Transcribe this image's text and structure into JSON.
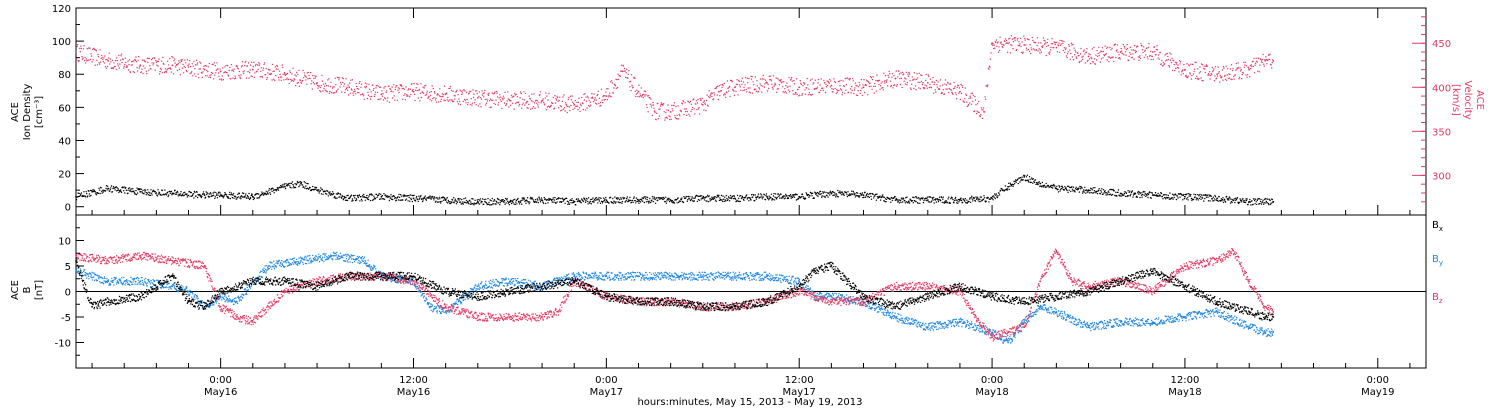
{
  "colors": {
    "black": "#000000",
    "velocity": "#e23b63",
    "by": "#1f86e0",
    "bz": "#e23b63"
  },
  "chart_data": [
    {
      "type": "scatter",
      "panel": "top",
      "ylabel_left": [
        "ACE",
        "Ion Density",
        "[cm⁻³]"
      ],
      "ylabel_right": [
        "ACE",
        "Velocity",
        "[km/s]"
      ],
      "left_axis": {
        "range": [
          -5,
          120
        ],
        "ticks": [
          0,
          20,
          40,
          60,
          80,
          100,
          120
        ]
      },
      "right_axis": {
        "range": [
          255,
          490
        ],
        "ticks": [
          300,
          350,
          400,
          450
        ]
      },
      "x_range_hours": [
        -9,
        75
      ],
      "series": [
        {
          "name": "",
          "axis": "left",
          "color_key": "black",
          "points": [
            [
              -9,
              6
            ],
            [
              -7,
              11
            ],
            [
              -5,
              9
            ],
            [
              -3,
              8
            ],
            [
              -1,
              7
            ],
            [
              0,
              7
            ],
            [
              2,
              6
            ],
            [
              4,
              12
            ],
            [
              5,
              14
            ],
            [
              6,
              10
            ],
            [
              8,
              5
            ],
            [
              10,
              6
            ],
            [
              12,
              5
            ],
            [
              14,
              4
            ],
            [
              16,
              3
            ],
            [
              18,
              3
            ],
            [
              20,
              4
            ],
            [
              22,
              3
            ],
            [
              24,
              4
            ],
            [
              26,
              4
            ],
            [
              28,
              4
            ],
            [
              30,
              5
            ],
            [
              32,
              5
            ],
            [
              34,
              6
            ],
            [
              36,
              6
            ],
            [
              38,
              8
            ],
            [
              40,
              7
            ],
            [
              42,
              4
            ],
            [
              44,
              4
            ],
            [
              46,
              4
            ],
            [
              48,
              5
            ],
            [
              49,
              12
            ],
            [
              50,
              18
            ],
            [
              51,
              14
            ],
            [
              52,
              11
            ],
            [
              54,
              10
            ],
            [
              56,
              8
            ],
            [
              58,
              7
            ],
            [
              60,
              6
            ],
            [
              62,
              5
            ],
            [
              64,
              3
            ],
            [
              65.5,
              3
            ]
          ]
        },
        {
          "name": "",
          "axis": "right",
          "color_key": "velocity",
          "points": [
            [
              -9,
              440
            ],
            [
              -7,
              430
            ],
            [
              -5,
              425
            ],
            [
              -3,
              425
            ],
            [
              -1,
              420
            ],
            [
              0,
              418
            ],
            [
              2,
              420
            ],
            [
              4,
              415
            ],
            [
              6,
              405
            ],
            [
              8,
              400
            ],
            [
              10,
              392
            ],
            [
              12,
              395
            ],
            [
              14,
              392
            ],
            [
              16,
              388
            ],
            [
              18,
              385
            ],
            [
              20,
              385
            ],
            [
              22,
              380
            ],
            [
              24,
              390
            ],
            [
              25,
              418
            ],
            [
              26,
              395
            ],
            [
              27,
              373
            ],
            [
              28,
              372
            ],
            [
              30,
              380
            ],
            [
              31,
              395
            ],
            [
              32,
              400
            ],
            [
              34,
              405
            ],
            [
              36,
              400
            ],
            [
              38,
              402
            ],
            [
              40,
              400
            ],
            [
              42,
              410
            ],
            [
              44,
              405
            ],
            [
              46,
              395
            ],
            [
              47.5,
              372
            ],
            [
              48,
              450
            ],
            [
              50,
              448
            ],
            [
              52,
              445
            ],
            [
              54,
              435
            ],
            [
              56,
              440
            ],
            [
              58,
              440
            ],
            [
              60,
              420
            ],
            [
              62,
              415
            ],
            [
              64,
              420
            ],
            [
              65,
              430
            ],
            [
              65.5,
              430
            ]
          ]
        }
      ]
    },
    {
      "type": "scatter",
      "panel": "bottom",
      "ylabel_left": [
        "ACE",
        "B",
        "[nT]"
      ],
      "left_axis": {
        "range": [
          -15,
          15
        ],
        "ticks": [
          -10,
          -5,
          0,
          5,
          10
        ]
      },
      "x_range_hours": [
        -9,
        75
      ],
      "x_ticks": [
        {
          "hours": 0,
          "line1": "0:00",
          "line2": "May16"
        },
        {
          "hours": 12,
          "line1": "12:00",
          "line2": "May16"
        },
        {
          "hours": 24,
          "line1": "0:00",
          "line2": "May17"
        },
        {
          "hours": 36,
          "line1": "12:00",
          "line2": "May17"
        },
        {
          "hours": 48,
          "line1": "0:00",
          "line2": "May18"
        },
        {
          "hours": 60,
          "line1": "12:00",
          "line2": "May18"
        },
        {
          "hours": 72,
          "line1": "0:00",
          "line2": "May19"
        }
      ],
      "xlabel": "hours:minutes, May 15, 2013 - May 19, 2013",
      "legend": [
        "B",
        "B",
        "B"
      ],
      "legend_subscripts": [
        "x",
        "y",
        "z"
      ],
      "series": [
        {
          "name": "Bx",
          "color_key": "black",
          "points": [
            [
              -9,
              6
            ],
            [
              -8,
              -3
            ],
            [
              -7,
              -2
            ],
            [
              -5,
              -1
            ],
            [
              -3,
              3
            ],
            [
              -2,
              -2
            ],
            [
              -1,
              -3
            ],
            [
              0,
              0
            ],
            [
              2,
              2
            ],
            [
              4,
              2
            ],
            [
              6,
              1
            ],
            [
              8,
              3
            ],
            [
              10,
              3
            ],
            [
              12,
              3
            ],
            [
              14,
              0
            ],
            [
              16,
              -1
            ],
            [
              18,
              0
            ],
            [
              20,
              1
            ],
            [
              22,
              2
            ],
            [
              24,
              -1
            ],
            [
              26,
              -2
            ],
            [
              28,
              -2
            ],
            [
              30,
              -3
            ],
            [
              32,
              -3
            ],
            [
              34,
              -2
            ],
            [
              36,
              1
            ],
            [
              37,
              4
            ],
            [
              38,
              5
            ],
            [
              39,
              2
            ],
            [
              40,
              -1
            ],
            [
              42,
              -3
            ],
            [
              44,
              -1
            ],
            [
              46,
              1
            ],
            [
              48,
              -1
            ],
            [
              50,
              -2
            ],
            [
              52,
              -1
            ],
            [
              54,
              0
            ],
            [
              56,
              2
            ],
            [
              58,
              4
            ],
            [
              60,
              1
            ],
            [
              62,
              -2
            ],
            [
              64,
              -4
            ],
            [
              65,
              -5
            ],
            [
              65.5,
              -5
            ]
          ]
        },
        {
          "name": "By",
          "color_key": "by",
          "points": [
            [
              -9,
              4
            ],
            [
              -7,
              2
            ],
            [
              -5,
              2
            ],
            [
              -3,
              1
            ],
            [
              -2,
              0
            ],
            [
              -1,
              -3
            ],
            [
              0,
              -1
            ],
            [
              1,
              -2
            ],
            [
              3,
              5
            ],
            [
              5,
              6
            ],
            [
              7,
              7
            ],
            [
              9,
              6
            ],
            [
              10,
              3
            ],
            [
              12,
              2
            ],
            [
              13,
              -3
            ],
            [
              14,
              -4
            ],
            [
              16,
              1
            ],
            [
              18,
              2
            ],
            [
              20,
              1
            ],
            [
              21,
              2
            ],
            [
              22,
              3
            ],
            [
              24,
              3
            ],
            [
              26,
              3
            ],
            [
              28,
              3
            ],
            [
              30,
              3
            ],
            [
              32,
              3
            ],
            [
              34,
              3
            ],
            [
              36,
              2
            ],
            [
              37,
              -1
            ],
            [
              38,
              -1
            ],
            [
              40,
              -2
            ],
            [
              42,
              -5
            ],
            [
              44,
              -7
            ],
            [
              46,
              -6
            ],
            [
              48,
              -8
            ],
            [
              49,
              -10
            ],
            [
              50,
              -6
            ],
            [
              51,
              -3
            ],
            [
              52,
              -4
            ],
            [
              54,
              -7
            ],
            [
              56,
              -6
            ],
            [
              58,
              -6
            ],
            [
              60,
              -5
            ],
            [
              62,
              -4
            ],
            [
              64,
              -7
            ],
            [
              65,
              -8
            ],
            [
              65.5,
              -8
            ]
          ]
        },
        {
          "name": "Bz",
          "color_key": "bz",
          "points": [
            [
              -9,
              7
            ],
            [
              -7,
              6
            ],
            [
              -5,
              7
            ],
            [
              -3,
              6
            ],
            [
              -1,
              5
            ],
            [
              0,
              -3
            ],
            [
              1,
              -5
            ],
            [
              2,
              -6
            ],
            [
              3,
              -3
            ],
            [
              4,
              0
            ],
            [
              6,
              2
            ],
            [
              8,
              3
            ],
            [
              10,
              3
            ],
            [
              12,
              2
            ],
            [
              14,
              -3
            ],
            [
              16,
              -5
            ],
            [
              18,
              -5
            ],
            [
              20,
              -5
            ],
            [
              21,
              -4
            ],
            [
              22,
              2
            ],
            [
              24,
              -1
            ],
            [
              26,
              -2
            ],
            [
              28,
              -2
            ],
            [
              30,
              -3
            ],
            [
              32,
              -3
            ],
            [
              34,
              -2
            ],
            [
              36,
              0
            ],
            [
              38,
              -2
            ],
            [
              40,
              -2
            ],
            [
              42,
              1
            ],
            [
              44,
              1
            ],
            [
              46,
              0
            ],
            [
              47,
              -5
            ],
            [
              48,
              -9
            ],
            [
              49,
              -8
            ],
            [
              50,
              -7
            ],
            [
              51,
              2
            ],
            [
              52,
              8
            ],
            [
              53,
              2
            ],
            [
              54,
              1
            ],
            [
              56,
              2
            ],
            [
              58,
              0
            ],
            [
              60,
              5
            ],
            [
              62,
              6
            ],
            [
              63,
              8
            ],
            [
              64,
              2
            ],
            [
              65,
              -3
            ],
            [
              65.5,
              -4
            ]
          ]
        }
      ]
    }
  ]
}
